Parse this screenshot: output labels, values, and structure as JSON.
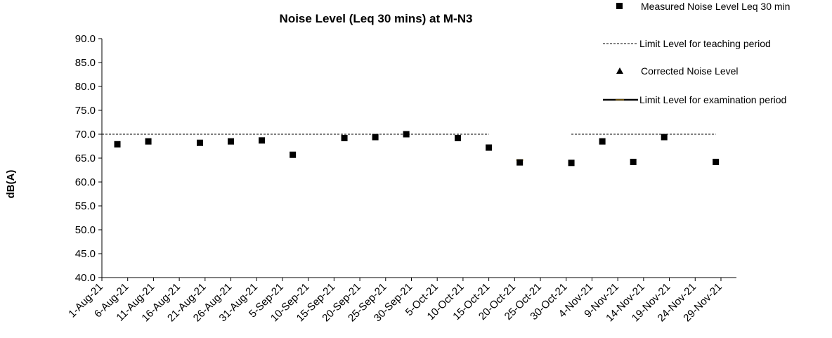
{
  "chart_data": {
    "type": "scatter",
    "title": "Noise Level (Leq 30 mins) at M-N3",
    "ylabel": "dB(A)",
    "xlabel": "",
    "ylim": [
      40.0,
      90.0
    ],
    "y_ticks": [
      "40.0",
      "45.0",
      "50.0",
      "55.0",
      "60.0",
      "65.0",
      "70.0",
      "75.0",
      "80.0",
      "85.0",
      "90.0"
    ],
    "x_ticks": [
      "1-Aug-21",
      "6-Aug-21",
      "11-Aug-21",
      "16-Aug-21",
      "21-Aug-21",
      "26-Aug-21",
      "31-Aug-21",
      "5-Sep-21",
      "10-Sep-21",
      "15-Sep-21",
      "20-Sep-21",
      "25-Sep-21",
      "30-Sep-21",
      "5-Oct-21",
      "10-Oct-21",
      "15-Oct-21",
      "20-Oct-21",
      "25-Oct-21",
      "30-Oct-21",
      "4-Nov-21",
      "9-Nov-21",
      "14-Nov-21",
      "19-Nov-21",
      "24-Nov-21",
      "29-Nov-21"
    ],
    "xlim": [
      "1-Aug-21",
      "2-Dec-21"
    ],
    "grid": false,
    "legend_position": "top-right",
    "series": [
      {
        "name": "Measured Noise Level Leq 30 min",
        "marker": "square",
        "color": "#000000",
        "points": [
          {
            "x": "4-Aug-21",
            "y": 67.9
          },
          {
            "x": "10-Aug-21",
            "y": 68.5
          },
          {
            "x": "20-Aug-21",
            "y": 68.2
          },
          {
            "x": "26-Aug-21",
            "y": 68.5
          },
          {
            "x": "1-Sep-21",
            "y": 68.7
          },
          {
            "x": "7-Sep-21",
            "y": 65.7
          },
          {
            "x": "17-Sep-21",
            "y": 69.2
          },
          {
            "x": "23-Sep-21",
            "y": 69.4
          },
          {
            "x": "29-Sep-21",
            "y": 70.0
          },
          {
            "x": "9-Oct-21",
            "y": 69.2
          },
          {
            "x": "15-Oct-21",
            "y": 67.2
          },
          {
            "x": "21-Oct-21",
            "y": 64.1
          },
          {
            "x": "31-Oct-21",
            "y": 64.0
          },
          {
            "x": "6-Nov-21",
            "y": 68.5
          },
          {
            "x": "12-Nov-21",
            "y": 64.2
          },
          {
            "x": "18-Nov-21",
            "y": 69.4
          },
          {
            "x": "28-Nov-21",
            "y": 64.2
          }
        ]
      },
      {
        "name": "Limit Level for teaching period",
        "style": "dashed-line",
        "color": "#000000",
        "segments": [
          {
            "x_start": "1-Aug-21",
            "x_end": "15-Oct-21",
            "y": 70.0
          },
          {
            "x_start": "31-Oct-21",
            "x_end": "28-Nov-21",
            "y": 70.0
          }
        ]
      },
      {
        "name": "Corrected Noise Level",
        "marker": "triangle",
        "color": "#000000",
        "points": []
      },
      {
        "name": "Limit Level for examination period",
        "style": "solid-line",
        "color": "#000000",
        "accent": "#d4a017",
        "segments": [
          {
            "x_start": "21-Oct-21",
            "x_end": "21-Oct-21",
            "y": 64.6
          }
        ]
      }
    ]
  }
}
